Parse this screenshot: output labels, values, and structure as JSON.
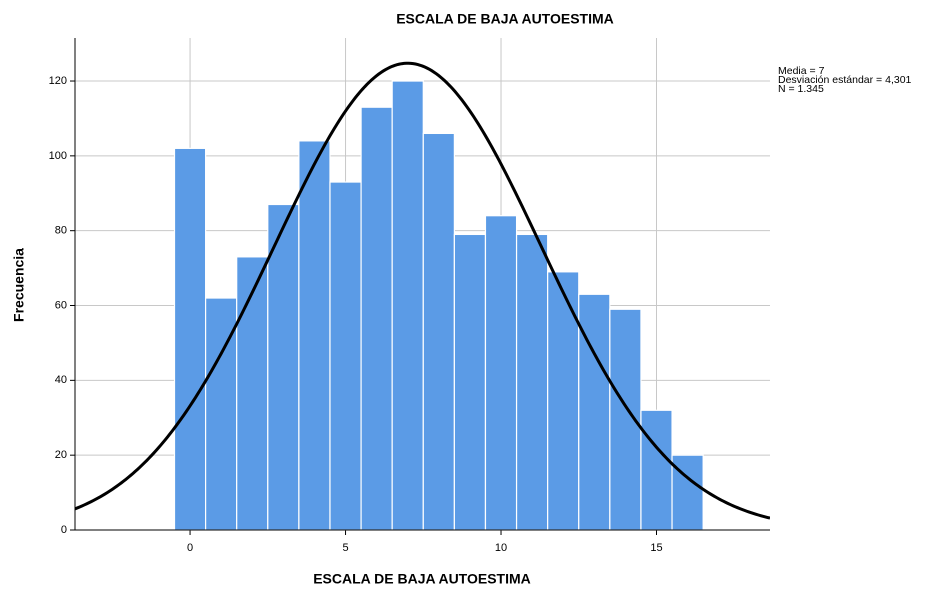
{
  "chart_data": {
    "type": "histogram",
    "title": "ESCALA DE BAJA AUTOESTIMA",
    "x_label": "ESCALA DE BAJA AUTOESTIMA",
    "y_label": "Frecuencia",
    "bins": [
      -0.5,
      0.5,
      1.5,
      2.5,
      3.5,
      4.5,
      5.5,
      6.5,
      7.5,
      8.5,
      9.5,
      10.5,
      11.5,
      12.5,
      13.5,
      14.5,
      15.5,
      16.5
    ],
    "values": [
      102,
      62,
      73,
      87,
      104,
      93,
      113,
      120,
      106,
      79,
      84,
      79,
      69,
      63,
      59,
      32,
      20
    ],
    "color": "#5b9be6",
    "normal_curve": {
      "values": [
        7,
        4.301,
        1345
      ],
      "value_labels": [
        "Media = 7",
        "Desviación estándar = 4,301",
        "N = 1.345"
      ],
      "color": "#000000"
    },
    "xlim": [
      -3.7,
      18.65
    ],
    "xticks": [
      0,
      5,
      10,
      15
    ],
    "ylim": [
      0,
      131.5
    ],
    "yticks": [
      0,
      20,
      40,
      60,
      80,
      100,
      120
    ],
    "grid": true
  }
}
